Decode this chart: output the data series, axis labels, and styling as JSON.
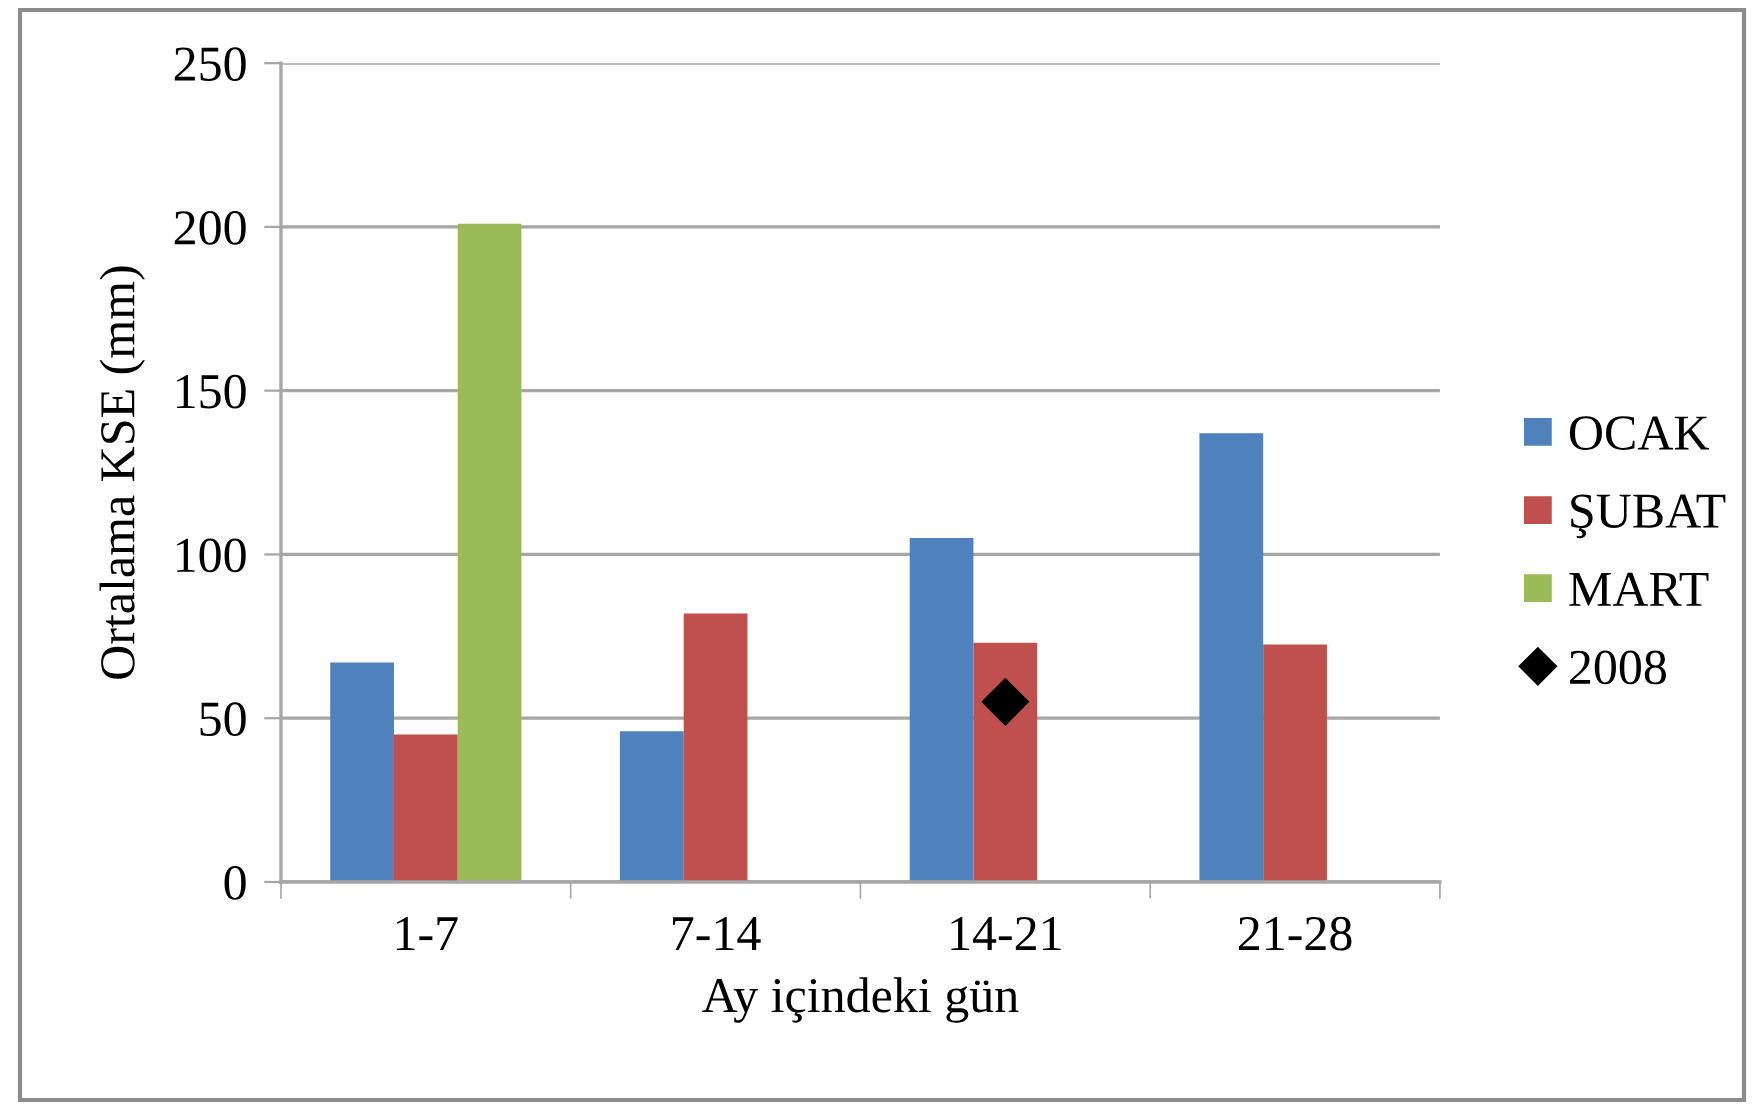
{
  "chart_data": {
    "type": "bar",
    "xlabel": "Ay içindeki gün",
    "ylabel": "Ortalama KSE (mm)",
    "categories": [
      "1-7",
      "7-14",
      "14-21",
      "21-28"
    ],
    "series": [
      {
        "name": "OCAK",
        "color": "#4f81bd",
        "values": [
          67,
          46,
          105,
          137
        ]
      },
      {
        "name": "ŞUBAT",
        "color": "#c0504d",
        "values": [
          45,
          82,
          73,
          72.5
        ]
      },
      {
        "name": "MART",
        "color": "#9bbb59",
        "values": [
          201,
          null,
          null,
          null
        ]
      },
      {
        "name": "2008",
        "type": "scatter",
        "color": "#000000",
        "marker": "diamond",
        "x": [
          "14-21"
        ],
        "values": [
          55
        ]
      }
    ],
    "ylim": [
      0,
      250
    ],
    "yticks": [
      0,
      50,
      100,
      150,
      200,
      250
    ],
    "grid": "y",
    "legend": "right"
  }
}
